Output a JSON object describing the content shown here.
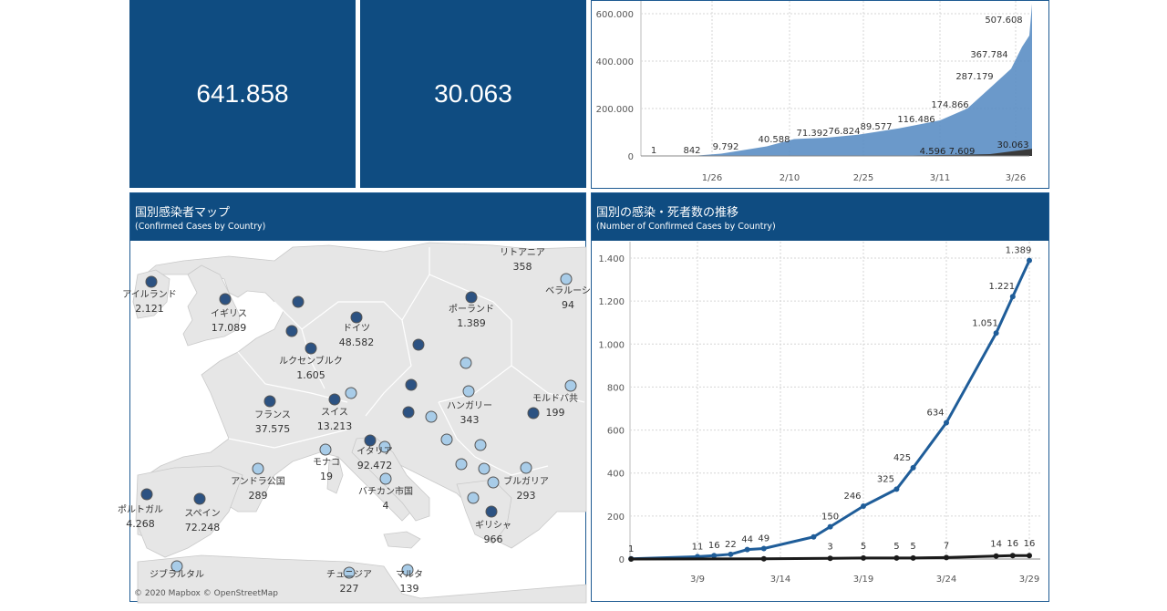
{
  "kpis": {
    "confirmed": "641.858",
    "deaths": "30.063"
  },
  "top_chart": {
    "type": "area",
    "y_ticks": [
      {
        "label": "0",
        "value": 0
      },
      {
        "label": "200.000",
        "value": 200000
      },
      {
        "label": "400.000",
        "value": 400000
      },
      {
        "label": "600.000",
        "value": 600000
      }
    ],
    "x_ticks": [
      "1/26",
      "2/10",
      "2/25",
      "3/11",
      "3/26"
    ],
    "confirmed_labels": [
      "1",
      "842",
      "9.792",
      "40.588",
      "71.392",
      "76.824",
      "89.577",
      "116.486",
      "174.866",
      "287.179",
      "367.784",
      "507.608"
    ],
    "death_labels": [
      "4.596",
      "7.609",
      "30.063"
    ],
    "colors": {
      "confirmed": "#5b8ec4",
      "deaths": "#3a3a3a"
    }
  },
  "map_panel": {
    "title": "国別感染者マップ",
    "subtitle": "(Confirmed Cases by Country)",
    "credit": "© 2020 Mapbox © OpenStreetMap",
    "labels": [
      {
        "name": "アイルランド",
        "value": "2.121"
      },
      {
        "name": "イギリス",
        "value": "17.089"
      },
      {
        "name": "ドイツ",
        "value": "48.582"
      },
      {
        "name": "ポーランド",
        "value": "1.389"
      },
      {
        "name": "リトアニア",
        "value": "358"
      },
      {
        "name": "ベラルーシ",
        "value": "94"
      },
      {
        "name": "ルクセンブルク",
        "value": "1.605"
      },
      {
        "name": "フランス",
        "value": "37.575"
      },
      {
        "name": "スイス",
        "value": "13.213"
      },
      {
        "name": "ハンガリー",
        "value": "343"
      },
      {
        "name": "モルドバ共",
        "value": "199"
      },
      {
        "name": "イタリア",
        "value": "92.472"
      },
      {
        "name": "モナコ",
        "value": "19"
      },
      {
        "name": "アンドラ公国",
        "value": "289"
      },
      {
        "name": "バチカン市国",
        "value": "4"
      },
      {
        "name": "ブルガリア",
        "value": "293"
      },
      {
        "name": "ポルトガル",
        "value": "4.268"
      },
      {
        "name": "スペイン",
        "value": "72.248"
      },
      {
        "name": "ギリシャ",
        "value": "966"
      },
      {
        "name": "ジブラルタル",
        "value": ""
      },
      {
        "name": "チュニジア",
        "value": "227"
      },
      {
        "name": "マルタ",
        "value": "139"
      }
    ],
    "colors": {
      "dark": "#2c5282",
      "light": "#a8cce8",
      "land": "#e6e6e6",
      "water": "#ffffff"
    }
  },
  "line_panel": {
    "title": "国別の感染・死者数の推移",
    "subtitle": "(Number of Confirmed Cases by Country)",
    "chart_data": {
      "type": "line",
      "x_ticks": [
        "3/9",
        "3/14",
        "3/19",
        "3/24",
        "3/29"
      ],
      "y_ticks": [
        {
          "label": "0",
          "value": 0
        },
        {
          "label": "200",
          "value": 200
        },
        {
          "label": "400",
          "value": 400
        },
        {
          "label": "600",
          "value": 600
        },
        {
          "label": "800",
          "value": 800
        },
        {
          "label": "1.000",
          "value": 1000
        },
        {
          "label": "1.200",
          "value": 1200
        },
        {
          "label": "1.400",
          "value": 1400
        }
      ],
      "ylim": [
        0,
        1450
      ],
      "series": [
        {
          "color": "#1f5d99",
          "points": [
            {
              "day": 4,
              "v": 1,
              "label": "1"
            },
            {
              "day": 8,
              "v": 11,
              "label": "11"
            },
            {
              "day": 9,
              "v": 16,
              "label": "16"
            },
            {
              "day": 10,
              "v": 22,
              "label": "22"
            },
            {
              "day": 11,
              "v": 44,
              "label": "44"
            },
            {
              "day": 12,
              "v": 49,
              "label": "49"
            },
            {
              "day": 15,
              "v": 103,
              "label": ""
            },
            {
              "day": 16,
              "v": 150,
              "label": "150"
            },
            {
              "day": 18,
              "v": 246,
              "label": "246"
            },
            {
              "day": 20,
              "v": 325,
              "label": "325"
            },
            {
              "day": 21,
              "v": 425,
              "label": "425"
            },
            {
              "day": 23,
              "v": 634,
              "label": "634"
            },
            {
              "day": 26,
              "v": 1051,
              "label": "1.051"
            },
            {
              "day": 27,
              "v": 1221,
              "label": "1.221"
            },
            {
              "day": 28,
              "v": 1389,
              "label": "1.389"
            }
          ]
        },
        {
          "color": "#1a1a1a",
          "points": [
            {
              "day": 4,
              "v": 0,
              "label": ""
            },
            {
              "day": 12,
              "v": 1,
              "label": ""
            },
            {
              "day": 16,
              "v": 3,
              "label": "3"
            },
            {
              "day": 18,
              "v": 5,
              "label": "5"
            },
            {
              "day": 20,
              "v": 5,
              "label": "5"
            },
            {
              "day": 21,
              "v": 5,
              "label": "5"
            },
            {
              "day": 23,
              "v": 7,
              "label": "7"
            },
            {
              "day": 26,
              "v": 14,
              "label": "14"
            },
            {
              "day": 27,
              "v": 16,
              "label": "16"
            },
            {
              "day": 28,
              "v": 16,
              "label": "16"
            }
          ]
        }
      ]
    }
  }
}
